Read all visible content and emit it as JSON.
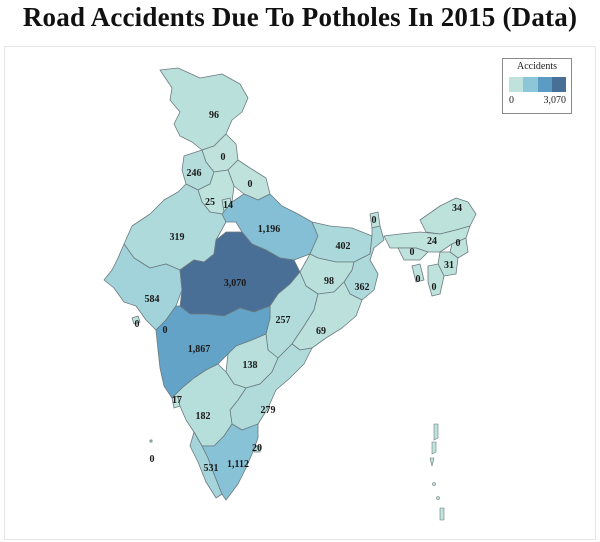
{
  "title": "Road Accidents Due To Potholes In 2015 (Data)",
  "legend": {
    "title": "Accidents",
    "min_label": "0",
    "max_label": "3,070",
    "colors": [
      "#bfe3dc",
      "#8cc6d8",
      "#5b9cc4",
      "#4a6f96"
    ]
  },
  "regions": [
    {
      "id": "jammu-kashmir",
      "value": 96,
      "label": "96"
    },
    {
      "id": "himachal-pradesh",
      "value": 0,
      "label": "0"
    },
    {
      "id": "punjab",
      "value": 246,
      "label": "246"
    },
    {
      "id": "uttarakhand",
      "value": 0,
      "label": "0"
    },
    {
      "id": "haryana",
      "value": 25,
      "label": "25"
    },
    {
      "id": "delhi",
      "value": 14,
      "label": "14"
    },
    {
      "id": "rajasthan",
      "value": 319,
      "label": "319"
    },
    {
      "id": "uttar-pradesh",
      "value": 1196,
      "label": "1,196"
    },
    {
      "id": "sikkim",
      "value": 0,
      "label": "0"
    },
    {
      "id": "arunachal-pradesh",
      "value": 34,
      "label": "34"
    },
    {
      "id": "bihar",
      "value": 402,
      "label": "402"
    },
    {
      "id": "assam",
      "value": 24,
      "label": "24"
    },
    {
      "id": "nagaland",
      "value": 0,
      "label": "0"
    },
    {
      "id": "meghalaya",
      "value": 0,
      "label": "0"
    },
    {
      "id": "manipur",
      "value": 31,
      "label": "31"
    },
    {
      "id": "tripura",
      "value": 0,
      "label": "0"
    },
    {
      "id": "mizoram",
      "value": 0,
      "label": "0"
    },
    {
      "id": "madhya-pradesh",
      "value": 3070,
      "label": "3,070"
    },
    {
      "id": "jharkhand",
      "value": 98,
      "label": "98"
    },
    {
      "id": "west-bengal",
      "value": 362,
      "label": "362"
    },
    {
      "id": "gujarat",
      "value": 584,
      "label": "584"
    },
    {
      "id": "daman-diu",
      "value": 0,
      "label": "0"
    },
    {
      "id": "dadra-nagar-haveli",
      "value": 0,
      "label": "0"
    },
    {
      "id": "chhattisgarh",
      "value": 257,
      "label": "257"
    },
    {
      "id": "odisha",
      "value": 69,
      "label": "69"
    },
    {
      "id": "maharashtra",
      "value": 1867,
      "label": "1,867"
    },
    {
      "id": "telangana",
      "value": 138,
      "label": "138"
    },
    {
      "id": "goa",
      "value": 17,
      "label": "17"
    },
    {
      "id": "karnataka",
      "value": 182,
      "label": "182"
    },
    {
      "id": "andhra-pradesh",
      "value": 279,
      "label": "279"
    },
    {
      "id": "puducherry",
      "value": 20,
      "label": "20"
    },
    {
      "id": "lakshadweep",
      "value": 0,
      "label": "0"
    },
    {
      "id": "kerala",
      "value": 531,
      "label": "531"
    },
    {
      "id": "tamil-nadu",
      "value": 1112,
      "label": "1,112"
    }
  ]
}
